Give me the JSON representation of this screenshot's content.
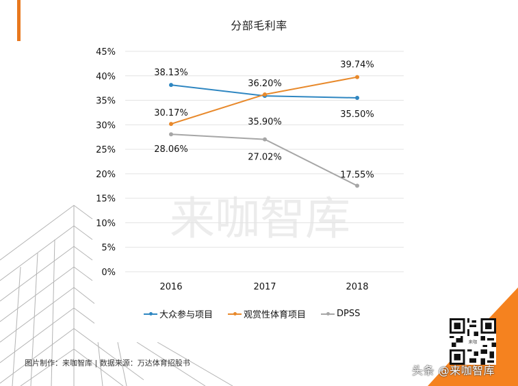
{
  "page": {
    "title": "分部毛利率",
    "footer_source": "图片制作：来咖智库 | 数据来源：万达体育招股书",
    "watermark": "来咖智库",
    "brand": "头条 @来咖智库",
    "qr_center_text": "来咖",
    "accent_color": "#e8781e"
  },
  "legend": [
    {
      "label": "大众参与项目",
      "color": "#2e86c1"
    },
    {
      "label": "观赏性体育项目",
      "color": "#e8892b"
    },
    {
      "label": "DPSS",
      "color": "#a6a6a6"
    }
  ],
  "chart_data": {
    "type": "line",
    "title": "分部毛利率",
    "xlabel": "",
    "ylabel": "",
    "categories": [
      "2016",
      "2017",
      "2018"
    ],
    "series": [
      {
        "name": "大众参与项目",
        "color": "#2e86c1",
        "values": [
          38.13,
          35.9,
          35.5
        ],
        "labels": [
          "38.13%",
          "35.90%",
          "35.50%"
        ]
      },
      {
        "name": "观赏性体育项目",
        "color": "#e8892b",
        "values": [
          30.17,
          36.2,
          39.74
        ],
        "labels": [
          "30.17%",
          "36.20%",
          "39.74%"
        ]
      },
      {
        "name": "DPSS",
        "color": "#a6a6a6",
        "values": [
          28.06,
          27.02,
          17.55
        ],
        "labels": [
          "28.06%",
          "27.02%",
          "17.55%"
        ]
      }
    ],
    "ylim": [
      0,
      45
    ],
    "yticks": [
      "0%",
      "5%",
      "10%",
      "15%",
      "20%",
      "25%",
      "30%",
      "35%",
      "40%",
      "45%"
    ],
    "grid": true,
    "legend_position": "bottom"
  }
}
